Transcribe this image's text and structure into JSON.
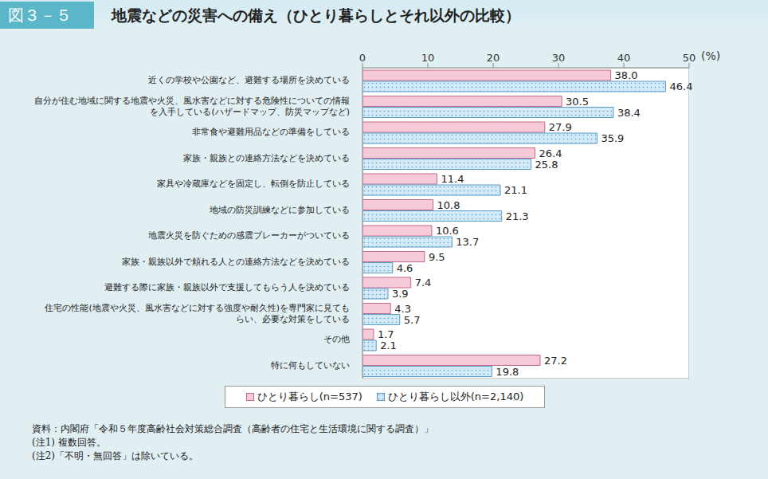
{
  "chart_data": {
    "type": "bar",
    "orientation": "horizontal",
    "figure_label": "図３－５",
    "title": "地震などの災害への備え（ひとり暮らしとそれ以外の比較）",
    "unit": "(%)",
    "categories": [
      "近くの学校や公園など、避難する場所を決めている",
      "自分が住む地域に関する地震や火災、風水害などに対する危険性についての情報を入手している(ハザードマップ、防災マップなど)",
      "非常食や避難用品などの準備をしている",
      "家族・親族との連絡方法などを決めている",
      "家具や冷蔵庫などを固定し、転倒を防止している",
      "地域の防災訓練などに参加している",
      "地震火災を防ぐための感震ブレーカーがついている",
      "家族・親族以外で頼れる人との連絡方法などを決めている",
      "避難する際に家族・親族以外で支援してもらう人を決めている",
      "住宅の性能(地震や火災、風水害などに対する強度や耐久性)を専門家に見てもらい、必要な対策をしている",
      "その他",
      "特に何もしていない"
    ],
    "series": [
      {
        "name": "ひとり暮らし(n=537)",
        "color": "#f7cad9",
        "values": [
          38.0,
          30.5,
          27.9,
          26.4,
          11.4,
          10.8,
          10.6,
          9.5,
          7.4,
          4.3,
          1.7,
          27.2
        ],
        "value_labels": [
          "38.0",
          "30.5",
          "27.9",
          "26.4",
          "11.4",
          "10.8",
          "10.6",
          "9.5",
          "7.4",
          "4.3",
          "1.7",
          "27.2"
        ]
      },
      {
        "name": "ひとり暮らし以外(n=2,140)",
        "color": "#d2eaf8",
        "values": [
          46.4,
          38.4,
          35.9,
          25.8,
          21.1,
          21.3,
          13.7,
          4.6,
          3.9,
          5.7,
          2.1,
          19.8
        ],
        "value_labels": [
          "46.4",
          "38.4",
          "35.9",
          "25.8",
          "21.1",
          "21.3",
          "13.7",
          "4.6",
          "3.9",
          "5.7",
          "2.1",
          "19.8"
        ]
      }
    ],
    "xlim": [
      0,
      50
    ],
    "xticks": [
      0,
      10,
      20,
      30,
      40,
      50
    ],
    "grid": false,
    "data_labels": true,
    "legend": "bottom",
    "notes": [
      "資料：内閣府「令和５年度高齢社会対策総合調査（高齢者の住宅と生活環境に関する調査）」",
      "(注1) 複数回答。",
      "(注2)「不明・無回答」は除いている。"
    ]
  }
}
